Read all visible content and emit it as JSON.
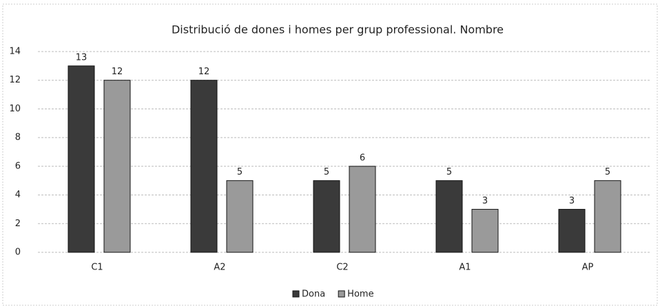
{
  "chart_data": {
    "type": "bar",
    "title": "Distribució de dones i homes per grup professional. Nombre",
    "categories": [
      "C1",
      "A2",
      "C2",
      "A1",
      "AP"
    ],
    "series": [
      {
        "name": "Dona",
        "color": "#3a3a3a",
        "values": [
          13,
          12,
          5,
          5,
          3
        ]
      },
      {
        "name": "Home",
        "color": "#9a9a9a",
        "values": [
          12,
          5,
          6,
          3,
          5
        ]
      }
    ],
    "ylim": [
      0,
      14
    ],
    "yticks": [
      0,
      2,
      4,
      6,
      8,
      10,
      12,
      14
    ],
    "grid": true,
    "legend": "bottom"
  }
}
